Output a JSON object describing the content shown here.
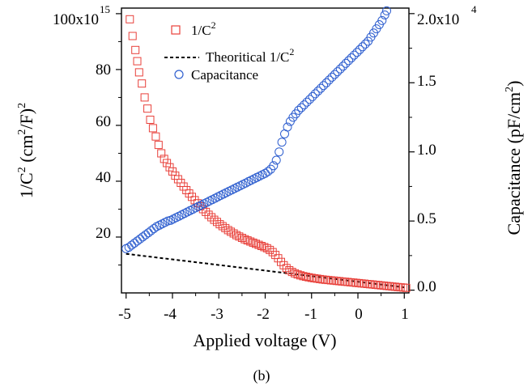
{
  "chart_data": {
    "type": "scatter",
    "caption": "(b)",
    "xlabel": "Applied voltage (V)",
    "xlim": [
      -5.1,
      1.1
    ],
    "x_ticks": [
      -5,
      -4,
      -3,
      -2,
      -1,
      0,
      1
    ],
    "x_tick_labels": [
      "-5",
      "-4",
      "-3",
      "-2",
      "-1",
      "0",
      "1"
    ],
    "left_axis": {
      "label_parts": [
        "1/C",
        "2",
        " (cm",
        "2",
        "/F)",
        "2"
      ],
      "ylim": [
        0,
        102
      ],
      "ticks": [
        20,
        40,
        60,
        80,
        100
      ],
      "tick_labels": [
        "20",
        "40",
        "60",
        "80",
        "100x10"
      ],
      "multiplier_exponent": "15"
    },
    "right_axis": {
      "label_parts": [
        "Capacitance (pF/cm",
        "2",
        ")"
      ],
      "ylim": [
        -0.02,
        2.04
      ],
      "ticks": [
        0.0,
        0.5,
        1.0,
        1.5,
        2.0
      ],
      "tick_labels": [
        "0.0",
        "0.5",
        "1.0",
        "1.5",
        "2.0x10"
      ],
      "multiplier_exponent": "4"
    },
    "legend": {
      "position": "top-center",
      "entries": [
        {
          "label_parts": [
            "1/C",
            "2"
          ],
          "marker": "square",
          "color": "#e8403a"
        },
        {
          "label_parts": [
            "Theoritical 1/C",
            "2"
          ],
          "marker": "dashed-line",
          "color": "#000000"
        },
        {
          "label_parts": [
            "Capacitance"
          ],
          "marker": "circle",
          "color": "#2f5fcf"
        }
      ]
    },
    "series": [
      {
        "name": "1/C^2",
        "axis": "left",
        "marker": "square",
        "color": "#e8403a",
        "x": [
          -4.92,
          -4.86,
          -4.8,
          -4.76,
          -4.72,
          -4.66,
          -4.6,
          -4.54,
          -4.48,
          -4.42,
          -4.36,
          -4.3,
          -4.24,
          -4.18,
          -4.12,
          -4.06,
          -4.0,
          -3.94,
          -3.88,
          -3.82,
          -3.76,
          -3.7,
          -3.64,
          -3.58,
          -3.52,
          -3.46,
          -3.4,
          -3.34,
          -3.28,
          -3.22,
          -3.16,
          -3.1,
          -3.04,
          -2.98,
          -2.92,
          -2.86,
          -2.8,
          -2.74,
          -2.68,
          -2.62,
          -2.56,
          -2.5,
          -2.44,
          -2.38,
          -2.32,
          -2.26,
          -2.2,
          -2.14,
          -2.08,
          -2.02,
          -1.96,
          -1.9,
          -1.84,
          -1.78,
          -1.72,
          -1.66,
          -1.6,
          -1.54,
          -1.48,
          -1.42,
          -1.36,
          -1.3,
          -1.24,
          -1.18,
          -1.12,
          -1.06,
          -1.0,
          -0.94,
          -0.88,
          -0.82,
          -0.76,
          -0.7,
          -0.64,
          -0.58,
          -0.52,
          -0.46,
          -0.4,
          -0.34,
          -0.28,
          -0.22,
          -0.16,
          -0.1,
          -0.04,
          0.02,
          0.08,
          0.14,
          0.2,
          0.26,
          0.32,
          0.38,
          0.44,
          0.5,
          0.56,
          0.62,
          0.68,
          0.74,
          0.8,
          0.86,
          0.92,
          0.98,
          1.04
        ],
        "y": [
          98.0,
          92.0,
          87.0,
          83.0,
          79.0,
          75.0,
          70.0,
          66.0,
          62.0,
          59.0,
          56.0,
          53.0,
          50.0,
          48.0,
          46.5,
          45.0,
          43.5,
          42.0,
          40.7,
          39.4,
          38.1,
          36.8,
          35.6,
          34.4,
          33.2,
          32.1,
          31.0,
          30.0,
          29.0,
          28.0,
          27.1,
          26.2,
          25.4,
          24.6,
          23.9,
          23.2,
          22.5,
          21.9,
          21.3,
          20.7,
          20.2,
          19.7,
          19.2,
          18.8,
          18.4,
          18.0,
          17.6,
          17.2,
          16.8,
          16.4,
          16.0,
          15.4,
          14.6,
          13.6,
          12.4,
          11.1,
          9.9,
          8.9,
          8.1,
          7.5,
          7.0,
          6.6,
          6.3,
          6.0,
          5.8,
          5.6,
          5.4,
          5.25,
          5.1,
          4.95,
          4.8,
          4.7,
          4.6,
          4.5,
          4.4,
          4.3,
          4.2,
          4.1,
          4.0,
          3.9,
          3.8,
          3.7,
          3.6,
          3.5,
          3.4,
          3.3,
          3.2,
          3.1,
          3.0,
          2.9,
          2.8,
          2.7,
          2.6,
          2.5,
          2.4,
          2.3,
          2.2,
          2.1,
          2.0,
          1.9,
          1.8
        ]
      },
      {
        "name": "Theoritical 1/C^2",
        "axis": "left",
        "marker": "dashed-line",
        "color": "#000000",
        "x": [
          -5.0,
          -2.0,
          1.0
        ],
        "y": [
          14.0,
          8.0,
          2.0
        ]
      },
      {
        "name": "Capacitance",
        "axis": "right",
        "marker": "circle",
        "color": "#2f5fcf",
        "x": [
          -5.0,
          -4.94,
          -4.88,
          -4.82,
          -4.76,
          -4.7,
          -4.64,
          -4.58,
          -4.52,
          -4.46,
          -4.4,
          -4.34,
          -4.28,
          -4.22,
          -4.16,
          -4.1,
          -4.04,
          -3.98,
          -3.92,
          -3.86,
          -3.8,
          -3.74,
          -3.68,
          -3.62,
          -3.56,
          -3.5,
          -3.44,
          -3.38,
          -3.32,
          -3.26,
          -3.2,
          -3.14,
          -3.08,
          -3.02,
          -2.96,
          -2.9,
          -2.84,
          -2.78,
          -2.72,
          -2.66,
          -2.6,
          -2.54,
          -2.48,
          -2.42,
          -2.36,
          -2.3,
          -2.24,
          -2.18,
          -2.12,
          -2.06,
          -2.0,
          -1.94,
          -1.88,
          -1.82,
          -1.76,
          -1.7,
          -1.64,
          -1.58,
          -1.52,
          -1.46,
          -1.4,
          -1.34,
          -1.28,
          -1.22,
          -1.16,
          -1.1,
          -1.04,
          -0.98,
          -0.92,
          -0.86,
          -0.8,
          -0.74,
          -0.68,
          -0.62,
          -0.56,
          -0.5,
          -0.44,
          -0.38,
          -0.32,
          -0.26,
          -0.2,
          -0.14,
          -0.08,
          -0.02,
          0.04,
          0.1,
          0.16,
          0.22,
          0.28,
          0.34,
          0.4,
          0.46,
          0.52,
          0.58,
          0.62
        ],
        "y": [
          0.3,
          0.31,
          0.325,
          0.34,
          0.355,
          0.37,
          0.385,
          0.4,
          0.415,
          0.43,
          0.445,
          0.46,
          0.47,
          0.48,
          0.49,
          0.5,
          0.505,
          0.515,
          0.525,
          0.535,
          0.545,
          0.555,
          0.565,
          0.575,
          0.585,
          0.595,
          0.605,
          0.615,
          0.625,
          0.635,
          0.645,
          0.655,
          0.665,
          0.675,
          0.685,
          0.695,
          0.705,
          0.715,
          0.725,
          0.735,
          0.745,
          0.755,
          0.765,
          0.775,
          0.785,
          0.795,
          0.805,
          0.815,
          0.825,
          0.835,
          0.845,
          0.858,
          0.875,
          0.9,
          0.94,
          1.0,
          1.07,
          1.13,
          1.18,
          1.22,
          1.25,
          1.275,
          1.3,
          1.32,
          1.34,
          1.36,
          1.38,
          1.4,
          1.42,
          1.44,
          1.46,
          1.48,
          1.5,
          1.52,
          1.54,
          1.56,
          1.58,
          1.6,
          1.62,
          1.64,
          1.66,
          1.68,
          1.7,
          1.72,
          1.74,
          1.76,
          1.78,
          1.8,
          1.83,
          1.86,
          1.89,
          1.92,
          1.95,
          1.99,
          2.02
        ]
      }
    ]
  }
}
